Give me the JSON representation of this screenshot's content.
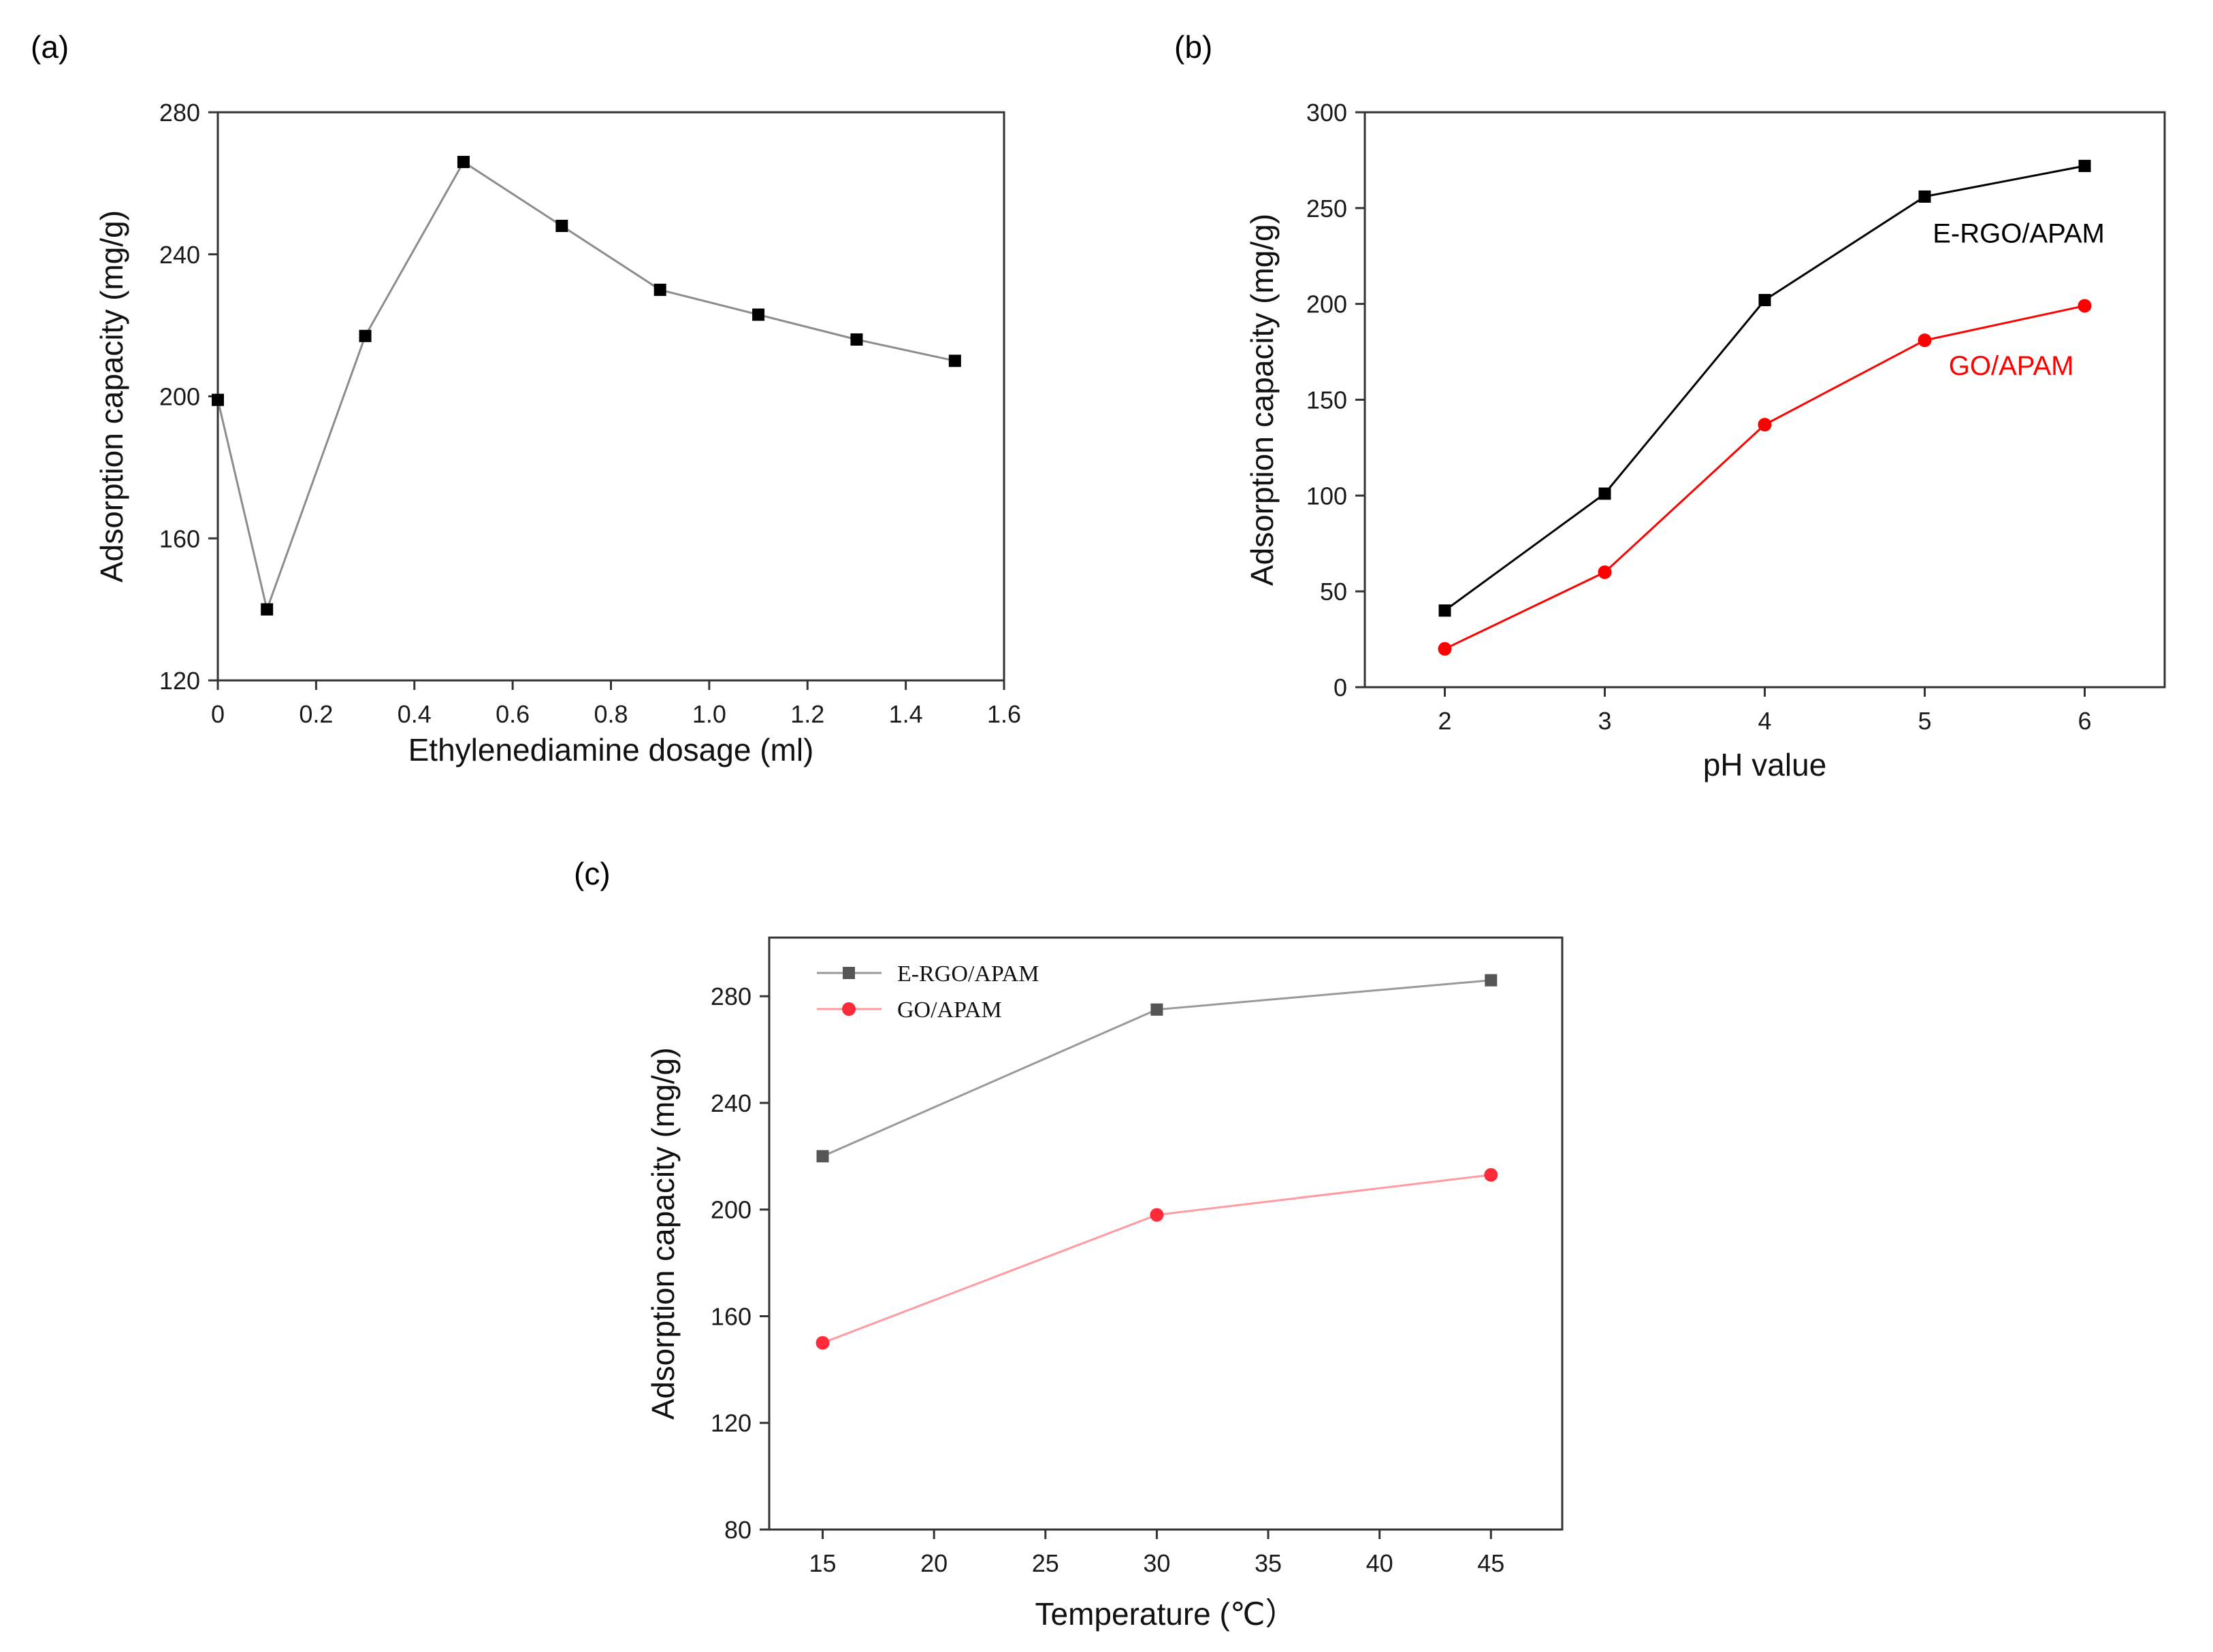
{
  "figure": {
    "background": "#ffffff",
    "axis_color": "#333333"
  },
  "chart_data": [
    {
      "panel": "(a)",
      "type": "line",
      "title": "",
      "xlabel": "Ethylenediamine dosage (ml)",
      "ylabel": "Adsorption capacity (mg/g)",
      "xlim": [
        0,
        1.6
      ],
      "ylim": [
        120,
        280
      ],
      "xticks": [
        0,
        0.2,
        0.4,
        0.6,
        0.8,
        1.0,
        1.2,
        1.4,
        1.6
      ],
      "xtick_labels": [
        "0",
        "0.2",
        "0.4",
        "0.6",
        "0.8",
        "1.0",
        "1.2",
        "1.4",
        "1.6"
      ],
      "yticks": [
        120,
        160,
        200,
        240,
        280
      ],
      "ytick_labels": [
        "120",
        "160",
        "200",
        "240",
        "280"
      ],
      "grid": false,
      "series": [
        {
          "name": "",
          "marker": "square",
          "color": "#000000",
          "line_color": "#8c8c8c",
          "x": [
            0,
            0.1,
            0.3,
            0.5,
            0.7,
            0.9,
            1.1,
            1.3,
            1.5
          ],
          "y": [
            199,
            140,
            217,
            266,
            248,
            230,
            223,
            216,
            210
          ]
        }
      ],
      "annotations": []
    },
    {
      "panel": "(b)",
      "type": "line",
      "title": "",
      "xlabel": "pH value",
      "ylabel": "Adsorption capacity (mg/g)",
      "xlim": [
        1.5,
        6.5
      ],
      "ylim": [
        0,
        300
      ],
      "xticks": [
        2,
        3,
        4,
        5,
        6
      ],
      "xtick_labels": [
        "2",
        "3",
        "4",
        "5",
        "6"
      ],
      "yticks": [
        0,
        50,
        100,
        150,
        200,
        250,
        300
      ],
      "ytick_labels": [
        "0",
        "50",
        "100",
        "150",
        "200",
        "250",
        "300"
      ],
      "grid": false,
      "series": [
        {
          "name": "E-RGO/APAM",
          "marker": "square",
          "color": "#000000",
          "line_color": "#000000",
          "x": [
            2,
            3,
            4,
            5,
            6
          ],
          "y": [
            40,
            101,
            202,
            256,
            272
          ]
        },
        {
          "name": "GO/APAM",
          "marker": "circle",
          "color": "#ff0000",
          "line_color": "#ff0000",
          "x": [
            2,
            3,
            4,
            5,
            6
          ],
          "y": [
            20,
            60,
            137,
            181,
            199
          ]
        }
      ],
      "annotations": [
        {
          "text": "E-RGO/APAM",
          "color": "#000000",
          "x": 5.05,
          "y": 232
        },
        {
          "text": "GO/APAM",
          "color": "#ff0000",
          "x": 5.15,
          "y": 163
        }
      ]
    },
    {
      "panel": "(c)",
      "type": "line",
      "title": "",
      "xlabel": "Temperature (℃）",
      "ylabel": "Adsorption capacity (mg/g)",
      "xlim": [
        12.6,
        48.2
      ],
      "ylim": [
        80,
        302
      ],
      "xticks": [
        15,
        20,
        25,
        30,
        35,
        40,
        45
      ],
      "xtick_labels": [
        "15",
        "20",
        "25",
        "30",
        "35",
        "40",
        "45"
      ],
      "yticks": [
        80,
        120,
        160,
        200,
        240,
        280
      ],
      "ytick_labels": [
        "80",
        "120",
        "160",
        "200",
        "240",
        "280"
      ],
      "grid": false,
      "legend": "top-left",
      "series": [
        {
          "name": "E-RGO/APAM",
          "marker": "square",
          "color": "#555555",
          "line_color": "#999999",
          "x": [
            15,
            30,
            45
          ],
          "y": [
            220,
            275,
            286
          ]
        },
        {
          "name": "GO/APAM",
          "marker": "circle",
          "color": "#ff2a3a",
          "line_color": "#ff9aa2",
          "x": [
            15,
            30,
            45
          ],
          "y": [
            150,
            198,
            213
          ]
        }
      ],
      "annotations": []
    }
  ]
}
